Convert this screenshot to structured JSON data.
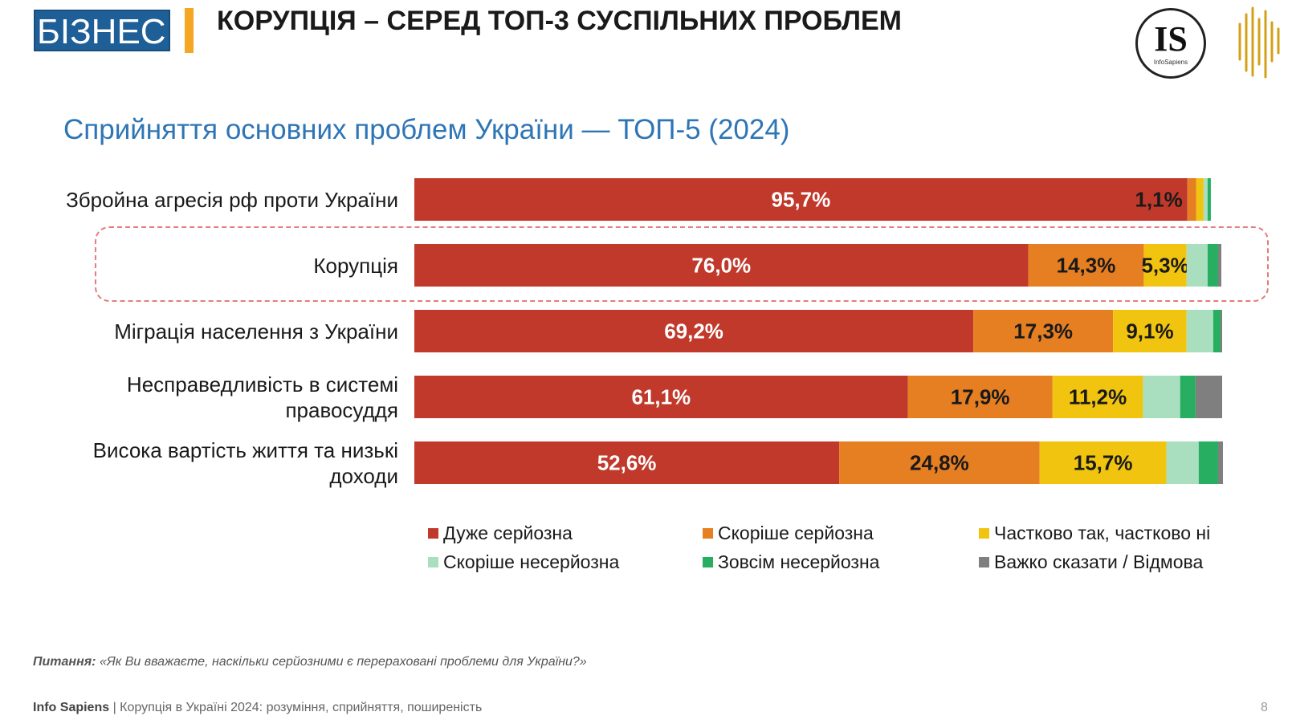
{
  "header": {
    "brand": "БІЗНЕС",
    "headline": "КОРУПЦІЯ – СЕРЕД ТОП-3 СУСПІЛЬНИХ ПРОБЛЕМ",
    "logo_text": "IS",
    "logo_subtext": "InfoSapiens"
  },
  "subtitle": "Сприйняття основних проблем України — ТОП-5 (2024)",
  "chart_data": {
    "type": "bar",
    "orientation": "horizontal",
    "stacked": true,
    "title": "Сприйняття основних проблем України — ТОП-5 (2024)",
    "categories": [
      "Збройна агресія рф проти України",
      "Корупція",
      "Міграція населення з України",
      "Несправедливість в системі правосуддя",
      "Висока вартість життя та низькі доходи"
    ],
    "category_lines": [
      [
        "Збройна агресія рф проти України"
      ],
      [
        "Корупція"
      ],
      [
        "Міграція населення з України"
      ],
      [
        "Несправедливість в системі",
        "правосуддя"
      ],
      [
        "Висока вартість життя та низькі",
        "доходи"
      ]
    ],
    "highlighted_category": "Корупція",
    "series": [
      {
        "name": "Дуже серйозна",
        "color": "#c0392b",
        "values": [
          95.7,
          76.0,
          69.2,
          61.1,
          52.6
        ]
      },
      {
        "name": "Скоріше серйозна",
        "color": "#e67e22",
        "values": [
          1.1,
          14.3,
          17.3,
          17.9,
          24.8
        ]
      },
      {
        "name": "Частково так, частково ні",
        "color": "#f1c40f",
        "values": [
          0.9,
          5.3,
          9.1,
          11.2,
          15.7
        ]
      },
      {
        "name": "Скоріше несерйозна",
        "color": "#a9dfbf",
        "values": [
          0.5,
          2.6,
          3.3,
          4.6,
          4.0
        ]
      },
      {
        "name": "Зовсім несерйозна",
        "color": "#27ae60",
        "values": [
          0.4,
          1.3,
          0.9,
          1.9,
          2.4
        ]
      },
      {
        "name": "Важко сказати / Відмова",
        "color": "#7f7f7f",
        "values": [
          0.0,
          0.4,
          0.2,
          3.3,
          0.6
        ]
      }
    ],
    "data_labels": [
      [
        "95,7%",
        "1,1%",
        "",
        "",
        "",
        ""
      ],
      [
        "76,0%",
        "14,3%",
        "5,3%",
        "",
        "",
        ""
      ],
      [
        "69,2%",
        "17,3%",
        "9,1%",
        "",
        "",
        ""
      ],
      [
        "61,1%",
        "17,9%",
        "11,2%",
        "",
        "",
        ""
      ],
      [
        "52,6%",
        "24,8%",
        "15,7%",
        "",
        "",
        ""
      ]
    ],
    "xlim": [
      0,
      100
    ],
    "legend_position": "bottom"
  },
  "question": {
    "label": "Питання:",
    "text": "«Як Ви вважаєте, наскільки серйозними є перераховані проблеми для України?»"
  },
  "footer": {
    "brand": "Info Sapiens",
    "text": "| Корупція в Україні 2024: розуміння, сприйняття, поширеність",
    "page": "8"
  }
}
